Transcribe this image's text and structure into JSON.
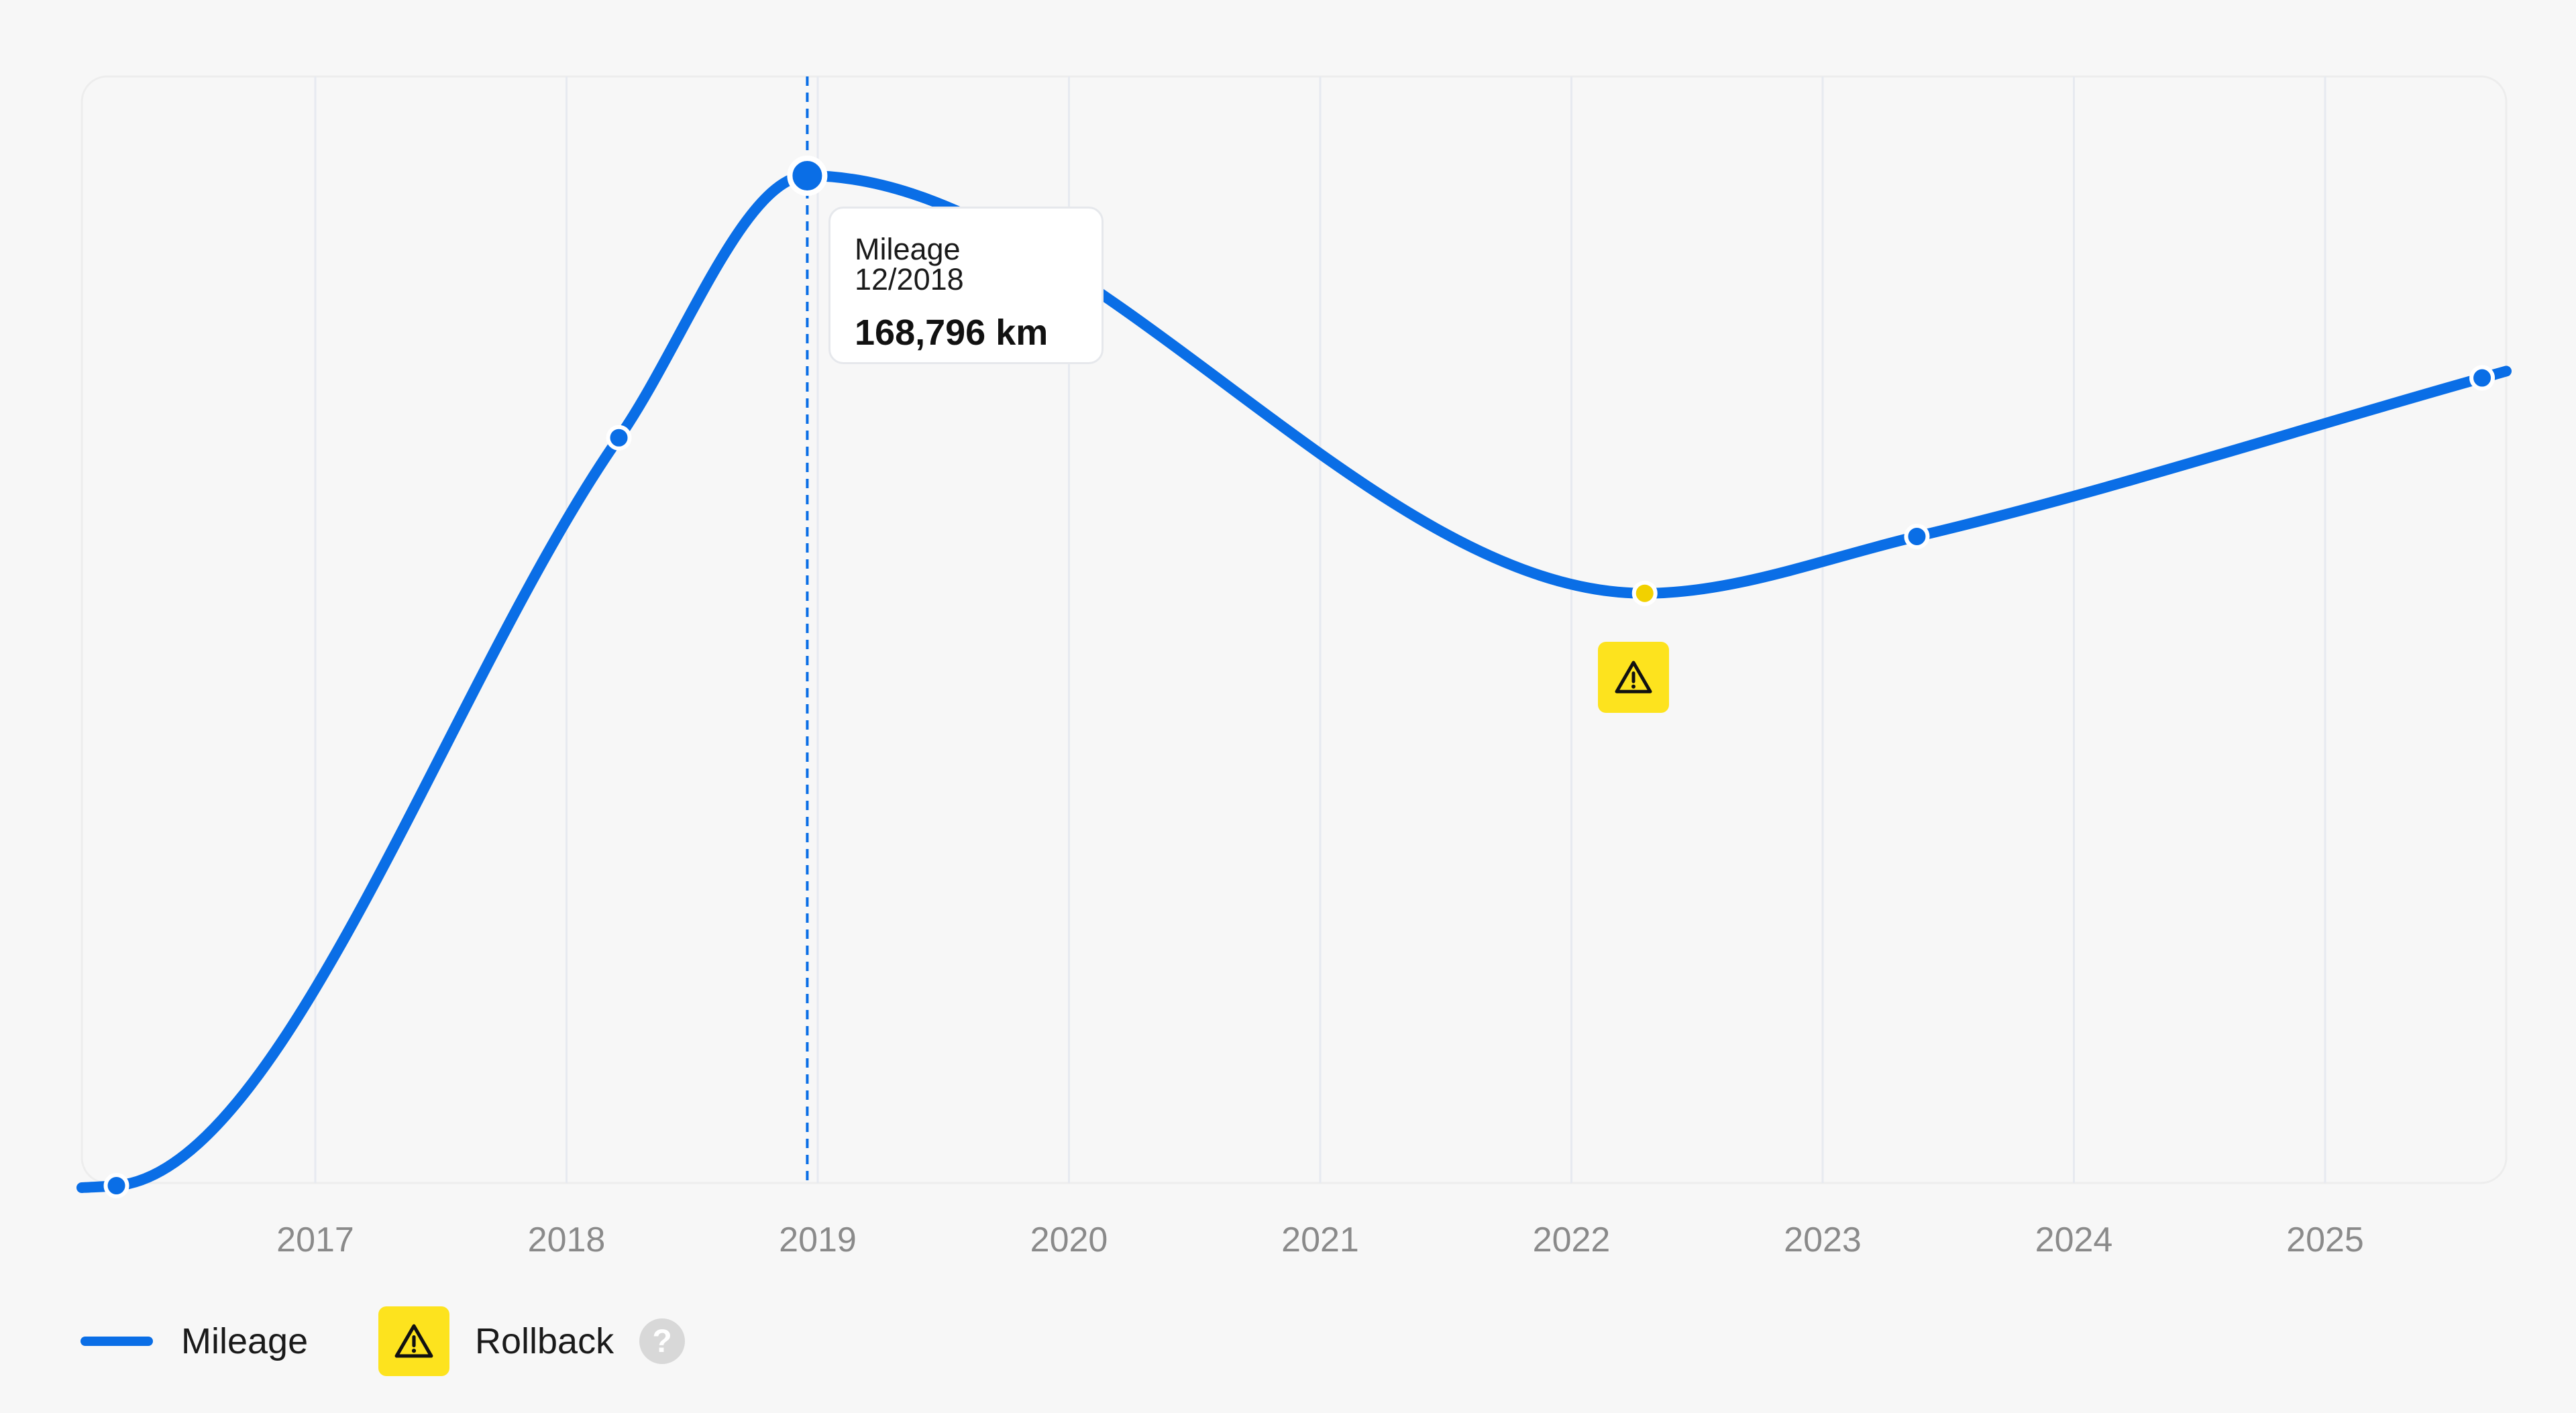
{
  "chart_data": {
    "type": "line",
    "x_ticks": [
      "2017",
      "2018",
      "2019",
      "2020",
      "2021",
      "2022",
      "2023",
      "2024",
      "2025"
    ],
    "series": [
      {
        "name": "Mileage",
        "unit": "km",
        "color": "#0a6ee6",
        "points": [
          {
            "date": "2016-03",
            "value": 0
          },
          {
            "date": "2018-03",
            "value": 125000
          },
          {
            "date": "2018-12",
            "value": 168796
          },
          {
            "date": "2022-04",
            "value": 99000
          },
          {
            "date": "2023-05",
            "value": 108500
          },
          {
            "date": "2025-08",
            "value": 135000
          }
        ]
      }
    ],
    "rollback_point_index": 3,
    "highlight_index": 2,
    "grid": "vertical",
    "legend_position": "bottom-left"
  },
  "tooltip": {
    "label": "Mileage 12/2018",
    "value": "168,796 km"
  },
  "legend": {
    "mileage_label": "Mileage",
    "rollback_label": "Rollback",
    "help_symbol": "?"
  },
  "colors": {
    "line": "#0a6ee6",
    "warning": "#fde31e",
    "warning_point": "#f2d100"
  },
  "icons": {
    "rollback": "warning-triangle-icon",
    "help": "question-circle-icon"
  }
}
